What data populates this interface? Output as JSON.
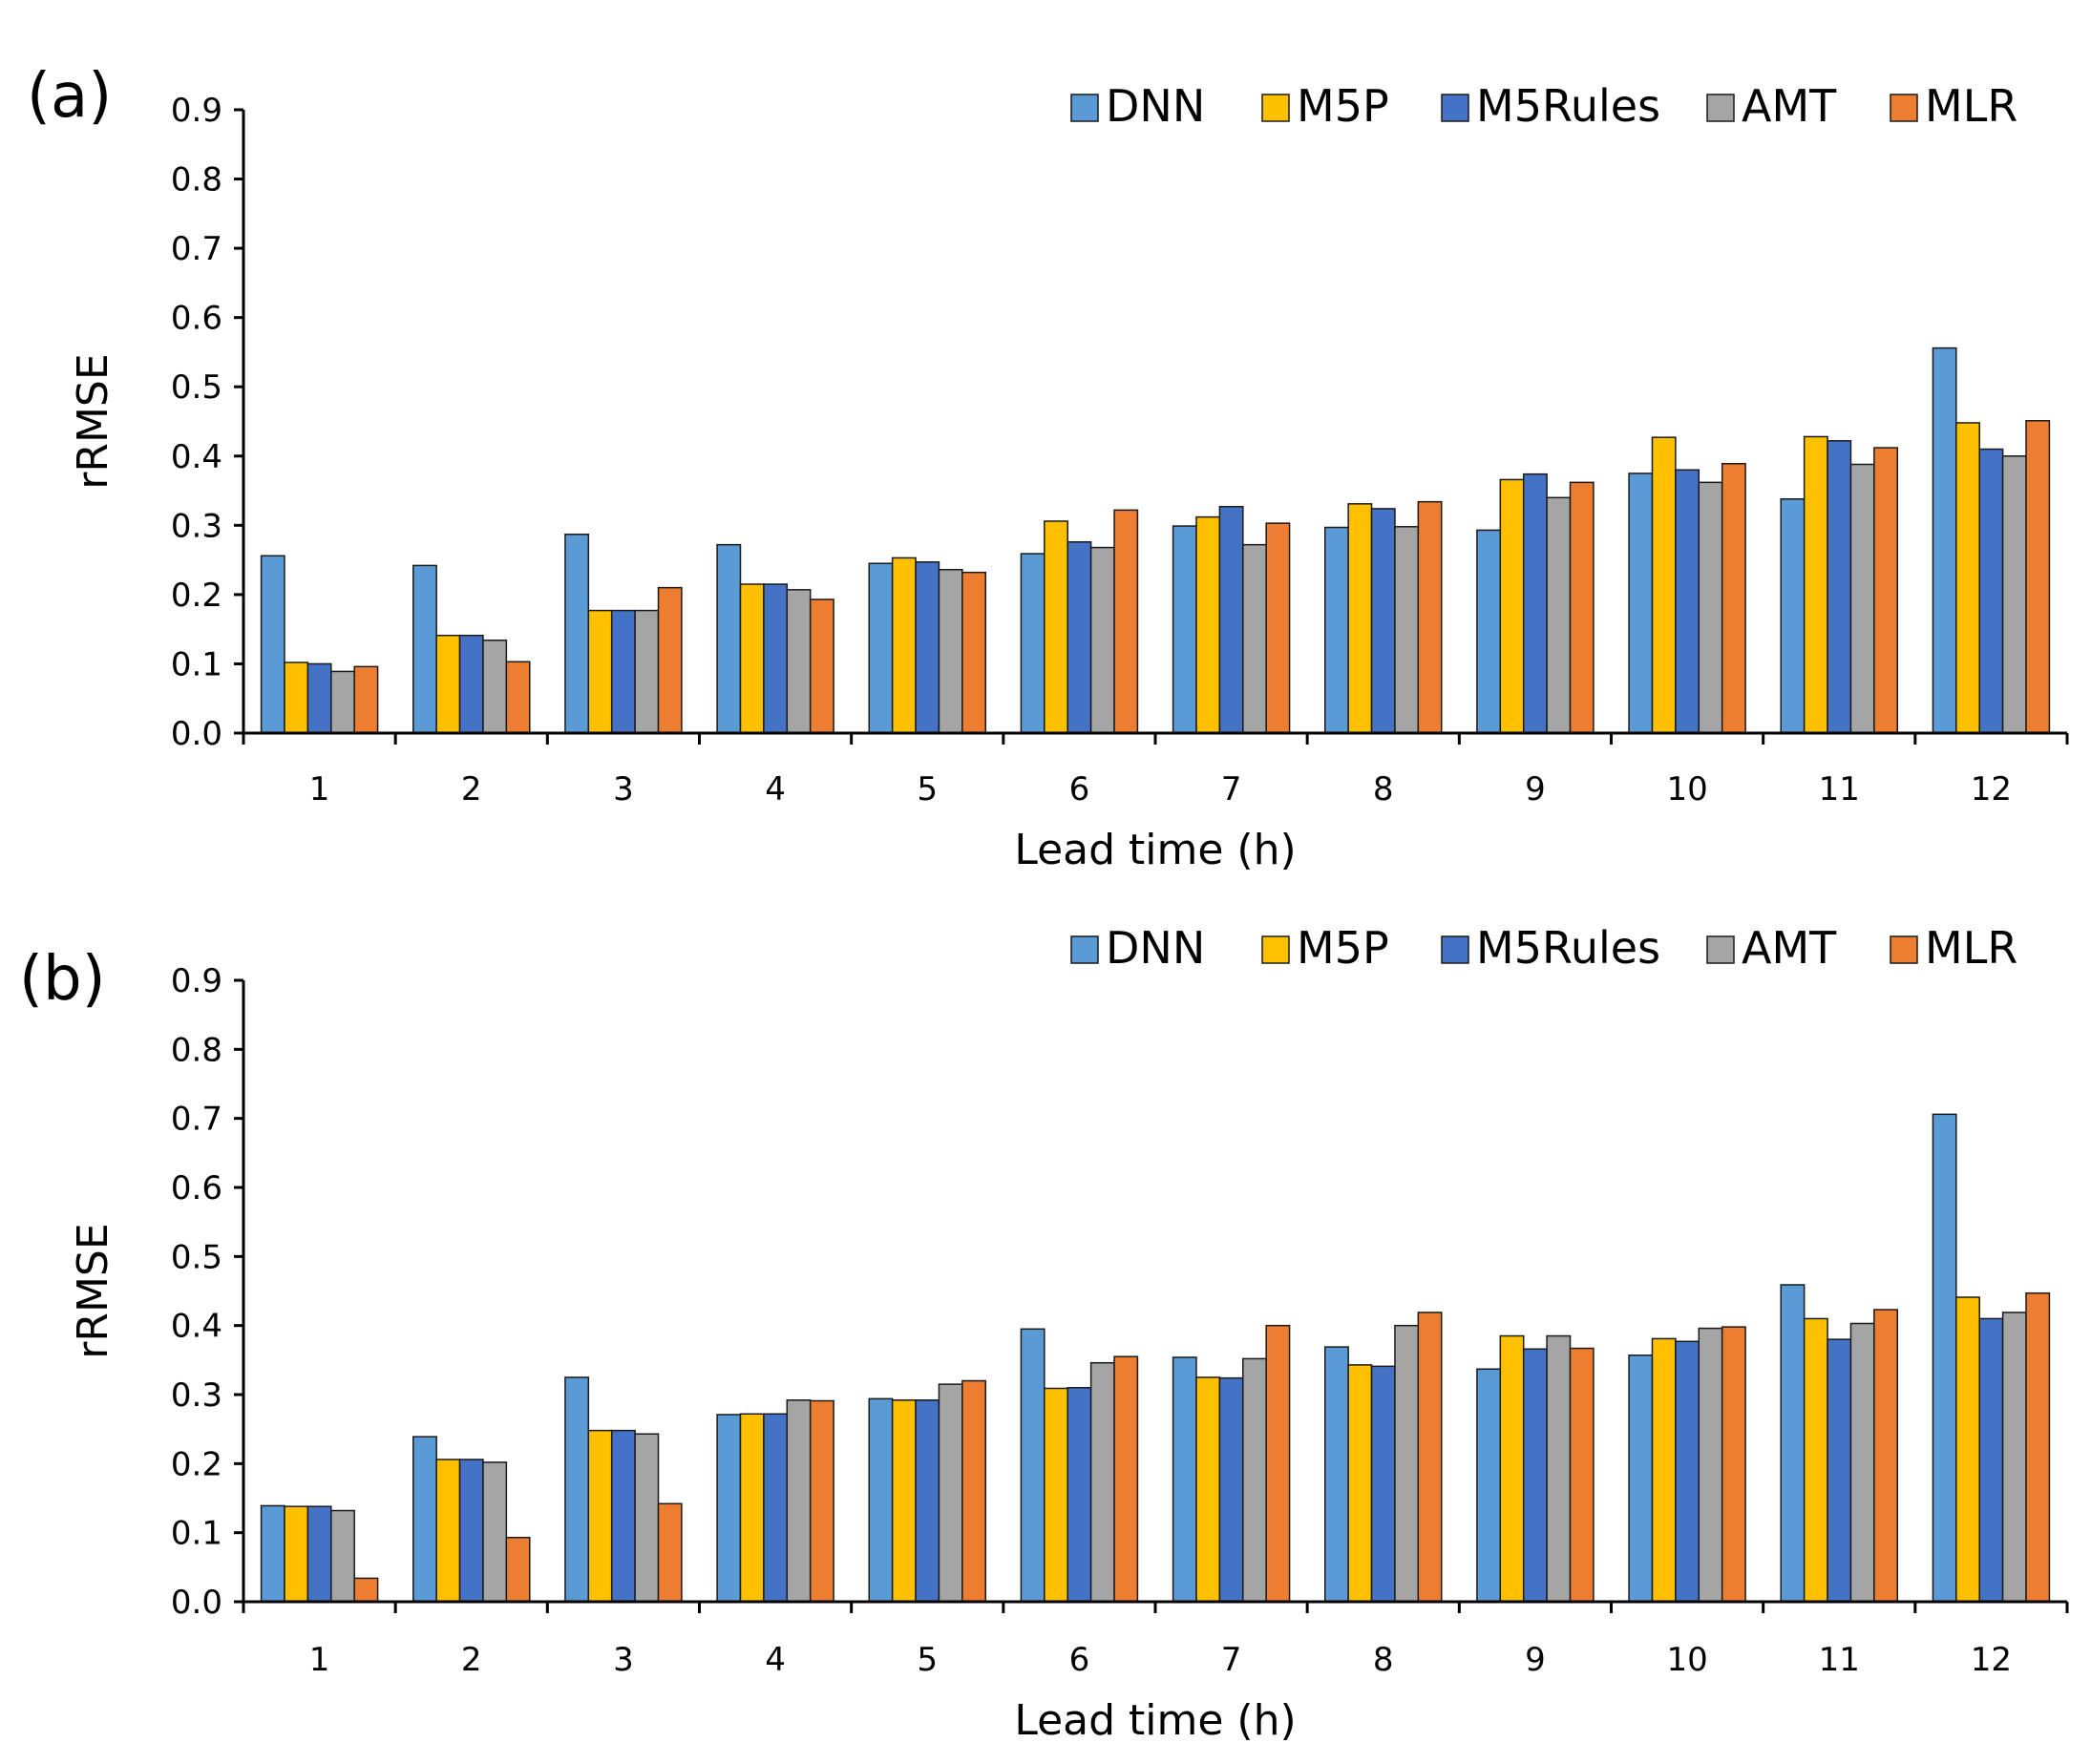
{
  "colors": {
    "DNN": "#5b9bd5",
    "M5P": "#ffc000",
    "M5Rules": "#4472c4",
    "AMT": "#a5a5a5",
    "MLR": "#ed7d31",
    "axis": "#000000"
  },
  "chart_data": [
    {
      "type": "bar",
      "panel_label": "(a)",
      "xlabel": "Lead time (h)",
      "ylabel": "rRMSE",
      "ylim": [
        0,
        0.9
      ],
      "yticks": [
        "0.0",
        "0.1",
        "0.2",
        "0.3",
        "0.4",
        "0.5",
        "0.6",
        "0.7",
        "0.8",
        "0.9"
      ],
      "legend_position": "top-right",
      "categories": [
        "1",
        "2",
        "3",
        "4",
        "5",
        "6",
        "7",
        "8",
        "9",
        "10",
        "11",
        "12"
      ],
      "series": [
        {
          "name": "DNN",
          "values": [
            0.256,
            0.242,
            0.287,
            0.272,
            0.245,
            0.259,
            0.299,
            0.297,
            0.293,
            0.375,
            0.338,
            0.556
          ]
        },
        {
          "name": "M5P",
          "values": [
            0.102,
            0.141,
            0.177,
            0.215,
            0.253,
            0.306,
            0.312,
            0.331,
            0.366,
            0.427,
            0.428,
            0.448
          ]
        },
        {
          "name": "M5Rules",
          "values": [
            0.1,
            0.141,
            0.177,
            0.215,
            0.247,
            0.276,
            0.327,
            0.324,
            0.374,
            0.38,
            0.422,
            0.41
          ]
        },
        {
          "name": "AMT",
          "values": [
            0.089,
            0.134,
            0.177,
            0.207,
            0.236,
            0.268,
            0.272,
            0.298,
            0.34,
            0.362,
            0.388,
            0.4
          ]
        },
        {
          "name": "MLR",
          "values": [
            0.096,
            0.103,
            0.21,
            0.193,
            0.232,
            0.322,
            0.303,
            0.334,
            0.362,
            0.389,
            0.412,
            0.451
          ]
        }
      ]
    },
    {
      "type": "bar",
      "panel_label": "(b)",
      "xlabel": "Lead time (h)",
      "ylabel": "rRMSE",
      "ylim": [
        0,
        0.9
      ],
      "yticks": [
        "0.0",
        "0.1",
        "0.2",
        "0.3",
        "0.4",
        "0.5",
        "0.6",
        "0.7",
        "0.8",
        "0.9"
      ],
      "legend_position": "top-right",
      "categories": [
        "1",
        "2",
        "3",
        "4",
        "5",
        "6",
        "7",
        "8",
        "9",
        "10",
        "11",
        "12"
      ],
      "series": [
        {
          "name": "DNN",
          "values": [
            0.139,
            0.239,
            0.325,
            0.271,
            0.294,
            0.395,
            0.354,
            0.369,
            0.337,
            0.357,
            0.459,
            0.706
          ]
        },
        {
          "name": "M5P",
          "values": [
            0.138,
            0.206,
            0.248,
            0.272,
            0.292,
            0.309,
            0.325,
            0.343,
            0.385,
            0.381,
            0.41,
            0.441
          ]
        },
        {
          "name": "M5Rules",
          "values": [
            0.138,
            0.206,
            0.248,
            0.272,
            0.292,
            0.31,
            0.324,
            0.341,
            0.366,
            0.377,
            0.38,
            0.41
          ]
        },
        {
          "name": "AMT",
          "values": [
            0.132,
            0.202,
            0.243,
            0.292,
            0.315,
            0.346,
            0.352,
            0.4,
            0.385,
            0.396,
            0.403,
            0.419
          ]
        },
        {
          "name": "MLR",
          "values": [
            0.034,
            0.093,
            0.142,
            0.291,
            0.32,
            0.355,
            0.4,
            0.419,
            0.367,
            0.398,
            0.423,
            0.447
          ]
        }
      ]
    }
  ]
}
